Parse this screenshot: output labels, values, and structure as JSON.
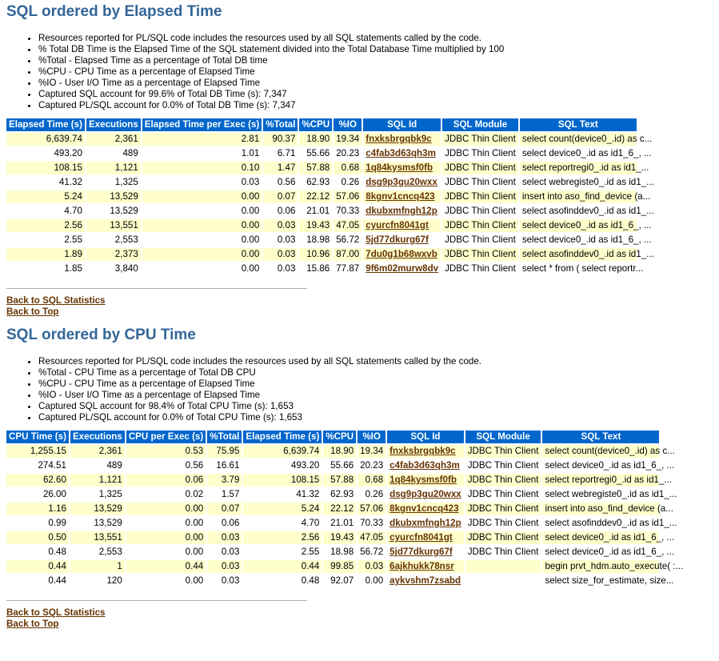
{
  "sections": [
    {
      "title": "SQL ordered by Elapsed Time",
      "notes": [
        "Resources reported for PL/SQL code includes the resources used by all SQL statements called by the code.",
        "% Total DB Time is the Elapsed Time of the SQL statement divided into the Total Database Time multiplied by 100",
        "%Total - Elapsed Time as a percentage of Total DB time",
        "%CPU - CPU Time as a percentage of Elapsed Time",
        "%IO - User I/O Time as a percentage of Elapsed Time",
        "Captured SQL account for 99.6% of Total DB Time (s): 7,347",
        "Captured PL/SQL account for 0.0% of Total DB Time (s): 7,347"
      ],
      "columns": [
        "Elapsed Time (s)",
        "Executions",
        "Elapsed Time per Exec (s)",
        "%Total",
        "%CPU",
        "%IO",
        "SQL Id",
        "SQL Module",
        "SQL Text"
      ],
      "rows": [
        [
          "6,639.74",
          "2,361",
          "2.81",
          "90.37",
          "18.90",
          "19.34",
          "fnxksbrgqbk9c",
          "JDBC Thin Client",
          "select count(device0_.id) as c..."
        ],
        [
          "493.20",
          "489",
          "1.01",
          "6.71",
          "55.66",
          "20.23",
          "c4fab3d63qh3m",
          "JDBC Thin Client",
          "select device0_.id as id1_6_, ..."
        ],
        [
          "108.15",
          "1,121",
          "0.10",
          "1.47",
          "57.88",
          "0.68",
          "1q84kysmsf0fb",
          "JDBC Thin Client",
          "select reportregi0_.id as id1_..."
        ],
        [
          "41.32",
          "1,325",
          "0.03",
          "0.56",
          "62.93",
          "0.26",
          "dsg9p3gu20wxx",
          "JDBC Thin Client",
          "select webregiste0_.id as id1_..."
        ],
        [
          "5.24",
          "13,529",
          "0.00",
          "0.07",
          "22.12",
          "57.06",
          "8kgnv1cncq423",
          "JDBC Thin Client",
          "insert into aso_find_device (a..."
        ],
        [
          "4.70",
          "13,529",
          "0.00",
          "0.06",
          "21.01",
          "70.33",
          "dkubxmfngh12p",
          "JDBC Thin Client",
          "select asofinddev0_.id as id1_..."
        ],
        [
          "2.56",
          "13,551",
          "0.00",
          "0.03",
          "19.43",
          "47.05",
          "cyurcfn8041gt",
          "JDBC Thin Client",
          "select device0_.id as id1_6_, ..."
        ],
        [
          "2.55",
          "2,553",
          "0.00",
          "0.03",
          "18.98",
          "56.72",
          "5jd77dkurg67f",
          "JDBC Thin Client",
          "select device0_.id as id1_6_, ..."
        ],
        [
          "1.89",
          "2,373",
          "0.00",
          "0.03",
          "10.96",
          "87.00",
          "7du0g1b68wxvb",
          "JDBC Thin Client",
          "select asofinddev0_.id as id1_..."
        ],
        [
          "1.85",
          "3,840",
          "0.00",
          "0.03",
          "15.86",
          "77.87",
          "9f6m02murw8dv",
          "JDBC Thin Client",
          "select * from ( select reportr..."
        ]
      ],
      "back_sql_stats": "Back to SQL Statistics",
      "back_top": "Back to Top"
    },
    {
      "title": "SQL ordered by CPU Time",
      "notes": [
        "Resources reported for PL/SQL code includes the resources used by all SQL statements called by the code.",
        "%Total - CPU Time as a percentage of Total DB CPU",
        "%CPU - CPU Time as a percentage of Elapsed Time",
        "%IO - User I/O Time as a percentage of Elapsed Time",
        "Captured SQL account for 98.4% of Total CPU Time (s): 1,653",
        "Captured PL/SQL account for 0.0% of Total CPU Time (s): 1,653"
      ],
      "columns": [
        "CPU Time (s)",
        "Executions",
        "CPU per Exec (s)",
        "%Total",
        "Elapsed Time (s)",
        "%CPU",
        "%IO",
        "SQL Id",
        "SQL Module",
        "SQL Text"
      ],
      "rows": [
        [
          "1,255.15",
          "2,361",
          "0.53",
          "75.95",
          "6,639.74",
          "18.90",
          "19.34",
          "fnxksbrgqbk9c",
          "JDBC Thin Client",
          "select count(device0_.id) as c..."
        ],
        [
          "274.51",
          "489",
          "0.56",
          "16.61",
          "493.20",
          "55.66",
          "20.23",
          "c4fab3d63qh3m",
          "JDBC Thin Client",
          "select device0_.id as id1_6_, ..."
        ],
        [
          "62.60",
          "1,121",
          "0.06",
          "3.79",
          "108.15",
          "57.88",
          "0.68",
          "1q84kysmsf0fb",
          "JDBC Thin Client",
          "select reportregi0_.id as id1_..."
        ],
        [
          "26.00",
          "1,325",
          "0.02",
          "1.57",
          "41.32",
          "62.93",
          "0.26",
          "dsg9p3gu20wxx",
          "JDBC Thin Client",
          "select webregiste0_.id as id1_..."
        ],
        [
          "1.16",
          "13,529",
          "0.00",
          "0.07",
          "5.24",
          "22.12",
          "57.06",
          "8kgnv1cncq423",
          "JDBC Thin Client",
          "insert into aso_find_device (a..."
        ],
        [
          "0.99",
          "13,529",
          "0.00",
          "0.06",
          "4.70",
          "21.01",
          "70.33",
          "dkubxmfngh12p",
          "JDBC Thin Client",
          "select asofinddev0_.id as id1_..."
        ],
        [
          "0.50",
          "13,551",
          "0.00",
          "0.03",
          "2.56",
          "19.43",
          "47.05",
          "cyurcfn8041gt",
          "JDBC Thin Client",
          "select device0_.id as id1_6_, ..."
        ],
        [
          "0.48",
          "2,553",
          "0.00",
          "0.03",
          "2.55",
          "18.98",
          "56.72",
          "5jd77dkurg67f",
          "JDBC Thin Client",
          "select device0_.id as id1_6_, ..."
        ],
        [
          "0.44",
          "1",
          "0.44",
          "0.03",
          "0.44",
          "99.85",
          "0.03",
          "6ajkhukk78nsr",
          "",
          "begin prvt_hdm.auto_execute( :..."
        ],
        [
          "0.44",
          "120",
          "0.00",
          "0.03",
          "0.48",
          "92.07",
          "0.00",
          "aykvshm7zsabd",
          "",
          "select size_for_estimate, size..."
        ]
      ],
      "back_sql_stats": "Back to SQL Statistics",
      "back_top": "Back to Top"
    }
  ]
}
